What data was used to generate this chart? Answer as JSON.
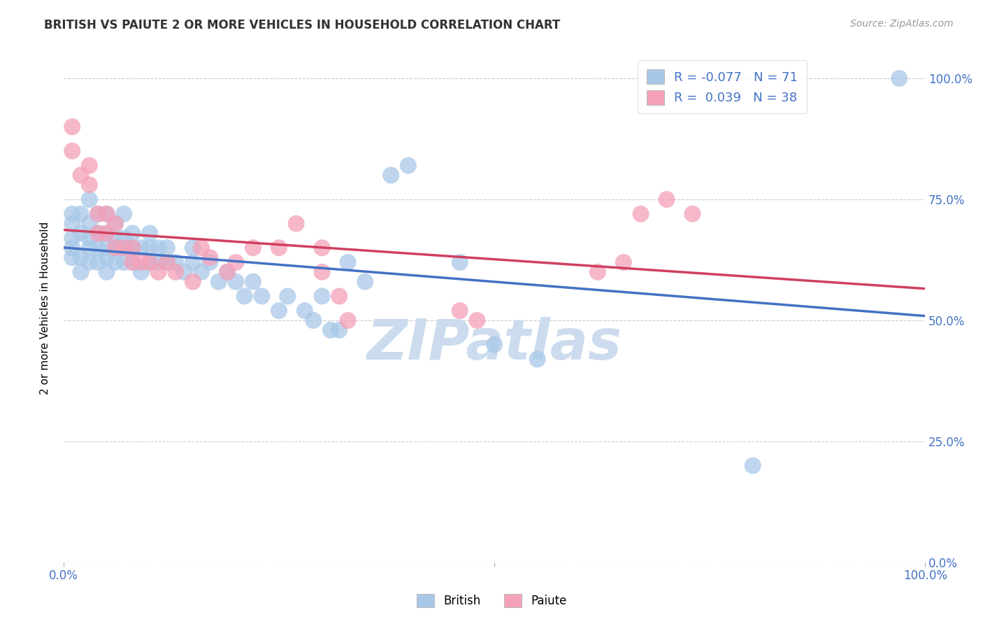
{
  "title": "BRITISH VS PAIUTE 2 OR MORE VEHICLES IN HOUSEHOLD CORRELATION CHART",
  "ylabel": "2 or more Vehicles in Household",
  "source_text": "Source: ZipAtlas.com",
  "british_color": "#a8c8e8",
  "paiute_color": "#f4a0b8",
  "british_line_color": "#4472c4",
  "paiute_line_color": "#d04060",
  "axis_label_color": "#4472c4",
  "watermark_color": "#ccdcee",
  "british_R": -0.077,
  "paiute_R": 0.039,
  "british_N": 71,
  "paiute_N": 38,
  "british_x": [
    0.01,
    0.01,
    0.01,
    0.01,
    0.01,
    0.02,
    0.02,
    0.02,
    0.02,
    0.03,
    0.03,
    0.03,
    0.03,
    0.03,
    0.04,
    0.04,
    0.04,
    0.04,
    0.05,
    0.05,
    0.05,
    0.05,
    0.05,
    0.06,
    0.06,
    0.06,
    0.06,
    0.07,
    0.07,
    0.07,
    0.07,
    0.08,
    0.08,
    0.08,
    0.09,
    0.09,
    0.1,
    0.1,
    0.1,
    0.11,
    0.11,
    0.12,
    0.12,
    0.13,
    0.14,
    0.15,
    0.15,
    0.16,
    0.17,
    0.18,
    0.19,
    0.2,
    0.21,
    0.22,
    0.23,
    0.25,
    0.26,
    0.28,
    0.29,
    0.3,
    0.31,
    0.32,
    0.33,
    0.35,
    0.38,
    0.4,
    0.46,
    0.5,
    0.55,
    0.8,
    0.97
  ],
  "british_y": [
    0.63,
    0.65,
    0.67,
    0.7,
    0.72,
    0.6,
    0.63,
    0.68,
    0.72,
    0.62,
    0.65,
    0.67,
    0.7,
    0.75,
    0.62,
    0.65,
    0.68,
    0.72,
    0.6,
    0.63,
    0.65,
    0.68,
    0.72,
    0.62,
    0.65,
    0.67,
    0.7,
    0.62,
    0.65,
    0.67,
    0.72,
    0.62,
    0.65,
    0.68,
    0.6,
    0.65,
    0.62,
    0.65,
    0.68,
    0.62,
    0.65,
    0.62,
    0.65,
    0.62,
    0.6,
    0.62,
    0.65,
    0.6,
    0.62,
    0.58,
    0.6,
    0.58,
    0.55,
    0.58,
    0.55,
    0.52,
    0.55,
    0.52,
    0.5,
    0.55,
    0.48,
    0.48,
    0.62,
    0.58,
    0.8,
    0.82,
    0.62,
    0.45,
    0.42,
    0.2,
    1.0
  ],
  "paiute_x": [
    0.01,
    0.01,
    0.02,
    0.03,
    0.03,
    0.04,
    0.04,
    0.05,
    0.05,
    0.06,
    0.06,
    0.07,
    0.08,
    0.08,
    0.09,
    0.1,
    0.11,
    0.12,
    0.13,
    0.15,
    0.16,
    0.17,
    0.19,
    0.2,
    0.22,
    0.25,
    0.27,
    0.3,
    0.3,
    0.32,
    0.33,
    0.46,
    0.48,
    0.62,
    0.65,
    0.67,
    0.7,
    0.73
  ],
  "paiute_y": [
    0.9,
    0.85,
    0.8,
    0.82,
    0.78,
    0.68,
    0.72,
    0.68,
    0.72,
    0.65,
    0.7,
    0.65,
    0.62,
    0.65,
    0.62,
    0.62,
    0.6,
    0.62,
    0.6,
    0.58,
    0.65,
    0.63,
    0.6,
    0.62,
    0.65,
    0.65,
    0.7,
    0.6,
    0.65,
    0.55,
    0.5,
    0.52,
    0.5,
    0.6,
    0.62,
    0.72,
    0.75,
    0.72
  ],
  "xlim": [
    0.0,
    1.0
  ],
  "ylim": [
    0.0,
    1.05
  ],
  "yticks": [
    0.0,
    0.25,
    0.5,
    0.75,
    1.0
  ],
  "yticklabels_right": [
    "0.0%",
    "25.0%",
    "50.0%",
    "75.0%",
    "100.0%"
  ]
}
